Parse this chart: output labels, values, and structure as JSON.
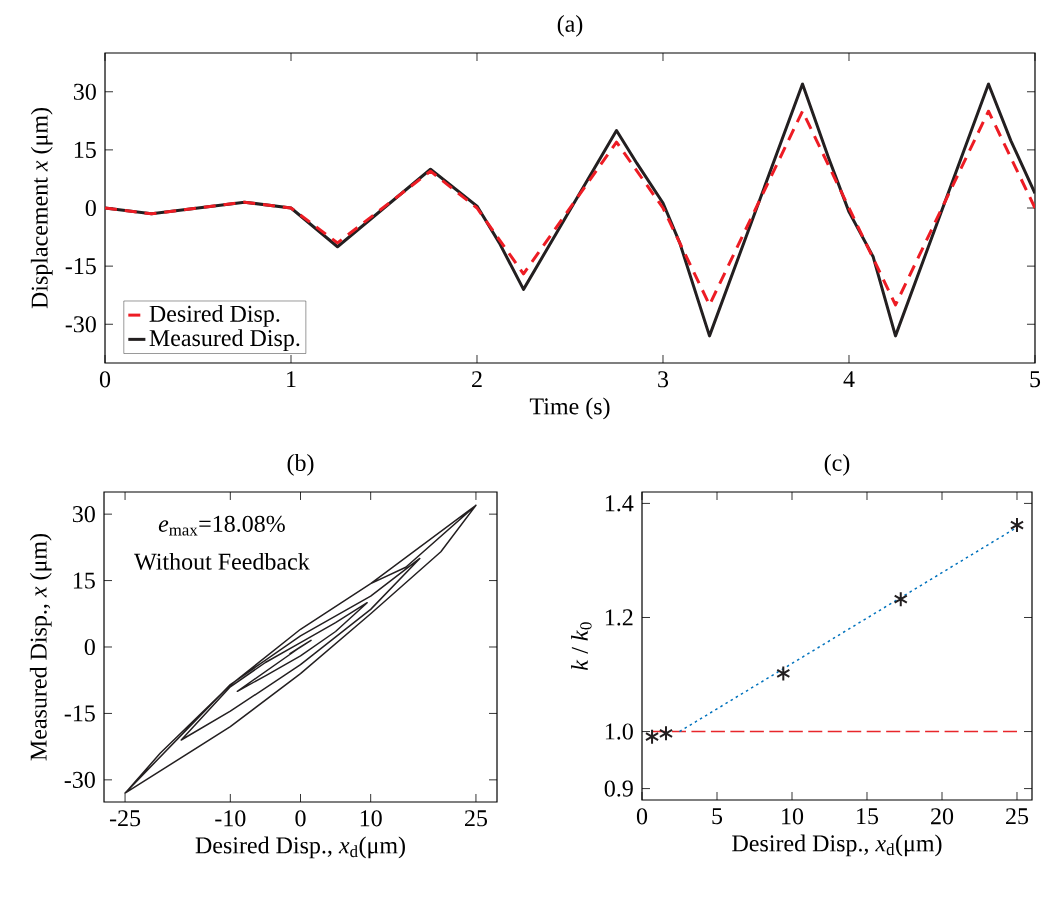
{
  "chart_data": [
    {
      "type": "line",
      "title": "(a)",
      "xlabel": "Time (s)",
      "ylabel": "Displacement *x* (μm)",
      "xlim": [
        0,
        5
      ],
      "ylim": [
        -40,
        40
      ],
      "xticks": [
        0,
        1,
        2,
        3,
        4,
        5
      ],
      "yticks": [
        -30,
        -15,
        0,
        15,
        30
      ],
      "legend": "bottom left",
      "series": [
        {
          "name": "Desired Disp.",
          "color": "#ed1c24",
          "line_style": "dashed",
          "x": [
            0,
            0.25,
            0.75,
            1,
            1.25,
            1.75,
            2,
            2.25,
            2.75,
            3,
            3.25,
            3.75,
            4,
            4.25,
            4.75,
            5
          ],
          "values": [
            0,
            -1.5,
            1.5,
            0,
            -9,
            9.5,
            0,
            -17,
            17,
            0,
            -25,
            25,
            0,
            -25,
            25,
            0
          ]
        },
        {
          "name": "Measured Disp.",
          "color": "#231f20",
          "line_style": "solid",
          "x": [
            0,
            0.25,
            0.75,
            1,
            1.25,
            1.75,
            2,
            2.12,
            2.25,
            2.75,
            2.86,
            3,
            3.09,
            3.25,
            3.75,
            3.89,
            4,
            4.13,
            4.25,
            4.75,
            4.87,
            5
          ],
          "values": [
            0,
            -1.5,
            1.5,
            0,
            -10,
            10,
            0.5,
            -9,
            -21,
            20,
            11.5,
            1.3,
            -9,
            -33,
            32,
            13,
            -1,
            -12.6,
            -33,
            32,
            17.4,
            3.8
          ]
        }
      ]
    },
    {
      "type": "line",
      "title": "(b)",
      "xlabel": "Desired Disp., *x*$_{d}$(μm)",
      "ylabel": "Measured Disp., *x* (μm)",
      "xlim": [
        -28,
        28
      ],
      "ylim": [
        -35,
        35
      ],
      "xticks": [
        -25,
        -10,
        0,
        10,
        25
      ],
      "yticks": [
        -30,
        -15,
        0,
        15,
        30
      ],
      "annotations": [
        "*e*$_{max}$=18.08%",
        "Without Feedback"
      ],
      "series": [
        {
          "color": "#231f20",
          "line_style": "solid",
          "x": [
            0,
            -1.5,
            1.5,
            0,
            -9,
            -5,
            0,
            5,
            9.5,
            5,
            0,
            -5,
            -10,
            -17,
            -10,
            0,
            10,
            17,
            10,
            0,
            -10,
            -25,
            -15,
            -10,
            0,
            10,
            20,
            25,
            15,
            10,
            0,
            -10,
            -20,
            -25,
            -10,
            0,
            10,
            20,
            25,
            10,
            0
          ],
          "values": [
            0,
            -1.5,
            1.5,
            0,
            -10,
            -6.5,
            -2,
            3.5,
            10,
            5.5,
            1,
            -3.5,
            -9,
            -21,
            -14.5,
            -4,
            8.5,
            20,
            11.5,
            2.5,
            -8.5,
            -33,
            -23,
            -18,
            -6,
            7.5,
            21.5,
            32,
            18,
            14.3,
            4,
            -8.6,
            -24,
            -33,
            -18,
            -6,
            7.5,
            21.5,
            32,
            14.3,
            4
          ]
        }
      ]
    },
    {
      "type": "scatter",
      "title": "(c)",
      "xlabel": "Desired Disp., *x*$_{d}$(μm)",
      "ylabel": "*k* / *k*$_{0}$",
      "xlim": [
        0,
        26
      ],
      "ylim": [
        0.88,
        1.42
      ],
      "xticks": [
        0,
        5,
        10,
        15,
        20,
        25
      ],
      "yticks": [
        0.9,
        {
          "value": 1.0,
          "label": "1.0"
        },
        1.2,
        1.4
      ],
      "series": [
        {
          "type": "line",
          "color": "#e8262b",
          "line_style": "dashed",
          "x": [
            0.7,
            25
          ],
          "values": [
            1.0,
            1.0
          ]
        },
        {
          "type": "line",
          "color": "#0072bd",
          "line_style": "dotted",
          "x": [
            2.5,
            24.8
          ],
          "values": [
            1.0,
            1.355
          ]
        },
        {
          "type": "scatter",
          "color": "#231f20",
          "marker": "cross",
          "x": [
            0.67,
            1.6,
            9.42,
            17.25,
            25.0
          ],
          "values": [
            0.991,
            0.997,
            1.102,
            1.232,
            1.362
          ]
        }
      ]
    }
  ]
}
